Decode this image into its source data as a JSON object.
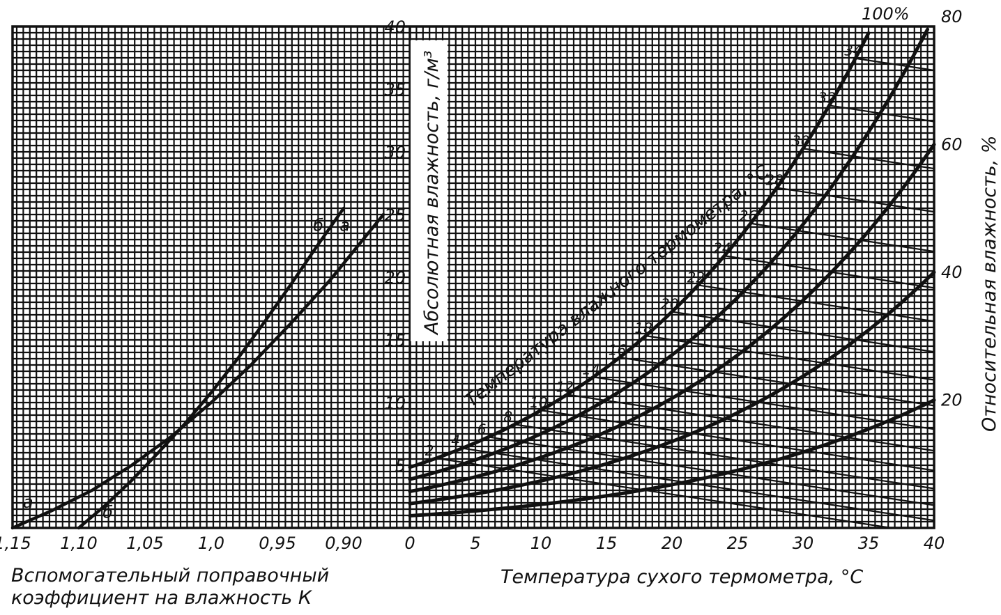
{
  "chart_data": {
    "type": "psychrometric-nomogram",
    "correction_panel": {
      "xlabel_line1": "Вспомогательный поправочный",
      "xlabel_line2": "коэффициент на влажность К",
      "xlim": [
        1.15,
        0.85
      ],
      "x_ticks": [
        "1,15",
        "1,10",
        "1,05",
        "1,0",
        "0,95",
        "0,90"
      ],
      "x_tick_values": [
        1.15,
        1.1,
        1.05,
        1.0,
        0.95,
        0.9
      ],
      "curves": [
        {
          "name": "а",
          "label_top": "а",
          "label_bottom": "а",
          "K": [
            1.15,
            1.12,
            1.09,
            1.06,
            1.03,
            1.0,
            0.97,
            0.94,
            0.91,
            0.89,
            0.87
          ],
          "abs_humidity": [
            0.0,
            1.4,
            3.0,
            5.0,
            7.3,
            10.0,
            13.0,
            16.3,
            19.8,
            22.4,
            25.0
          ]
        },
        {
          "name": "б",
          "label_top": "б",
          "label_bottom": "б",
          "K": [
            1.1,
            1.08,
            1.06,
            1.04,
            1.02,
            1.0,
            0.98,
            0.96,
            0.94,
            0.92,
            0.9
          ],
          "abs_humidity": [
            0.0,
            1.8,
            3.8,
            6.0,
            8.3,
            10.8,
            13.5,
            16.4,
            19.4,
            22.5,
            25.5
          ]
        }
      ]
    },
    "main_panel": {
      "xlabel": "Температура сухого термометра, °С",
      "ylabel_left": "Абсолютная влажность, г/м³",
      "ylabel_right": "Относительная влажность, %",
      "xlim": [
        0,
        40
      ],
      "ylim": [
        0,
        40
      ],
      "x_ticks": [
        "0",
        "5",
        "10",
        "15",
        "20",
        "25",
        "30",
        "35",
        "40"
      ],
      "y_ticks": [
        "5",
        "10",
        "15",
        "20",
        "25",
        "30",
        "35",
        "40"
      ],
      "y_tick_values": [
        5,
        10,
        15,
        20,
        25,
        30,
        35,
        40
      ],
      "right_ticks": [
        "20",
        "40",
        "60",
        "80"
      ],
      "right_tick_values": [
        20,
        40,
        60,
        80
      ],
      "saturation_label": "100%",
      "wet_bulb_title": "Температура влажного термометра, °С",
      "wet_bulb_labels": [
        "2",
        "4",
        "6",
        "8",
        "10",
        "12",
        "14",
        "16",
        "18",
        "20",
        "22",
        "24",
        "26",
        "28",
        "30",
        "32",
        "34"
      ],
      "wet_bulb_values": [
        2,
        4,
        6,
        8,
        10,
        12,
        14,
        16,
        18,
        20,
        22,
        24,
        26,
        28,
        30,
        32,
        34
      ],
      "rh_curves": [
        100,
        80,
        60,
        40,
        20
      ]
    },
    "grid": true
  }
}
